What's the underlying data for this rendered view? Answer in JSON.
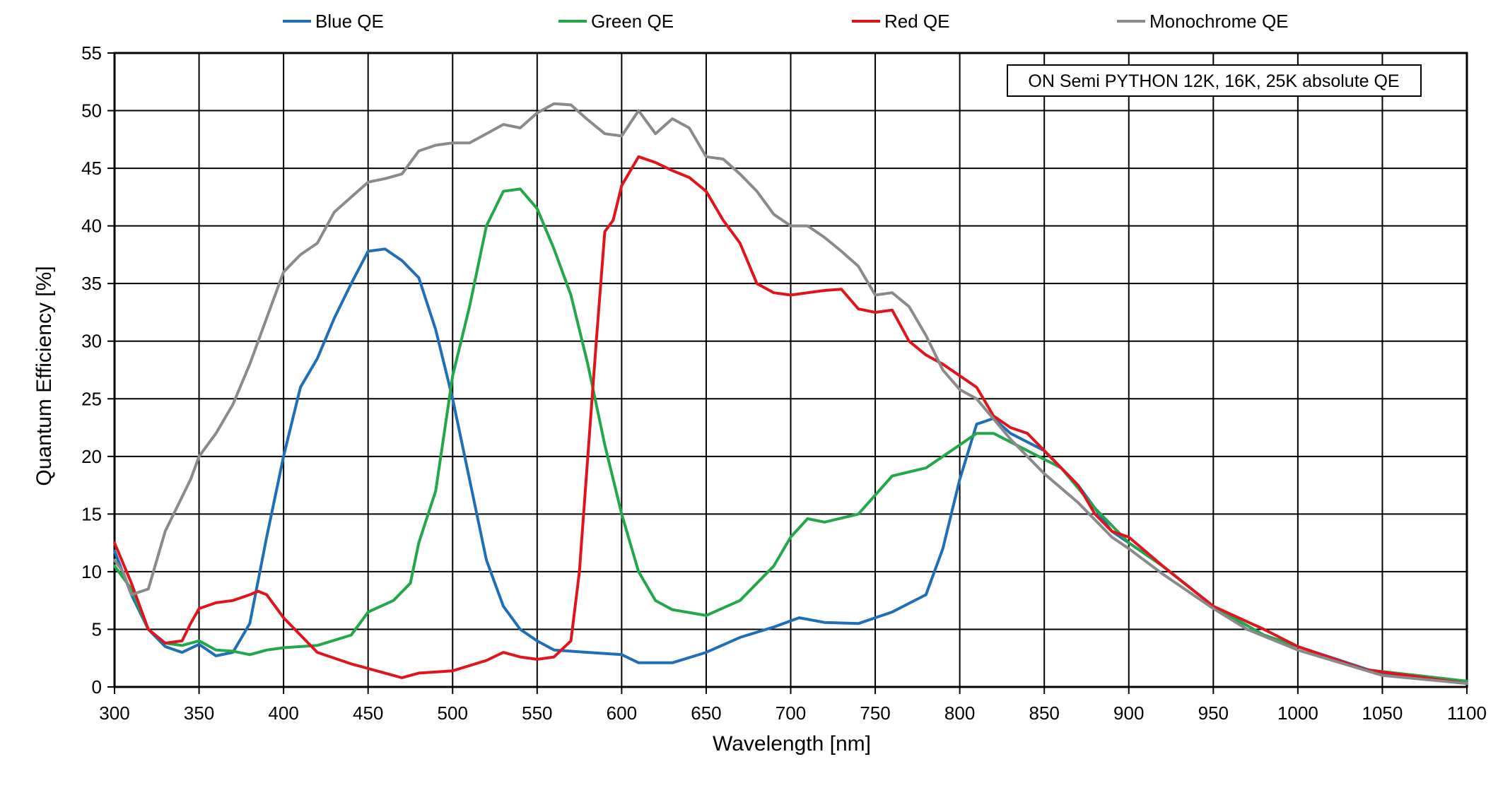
{
  "chart_data": {
    "type": "line",
    "title": "",
    "xlabel": "Wavelength [nm]",
    "ylabel": "Quantum Efficiency [%]",
    "xlim": [
      300,
      1100
    ],
    "ylim": [
      0,
      55
    ],
    "xticks": [
      300,
      350,
      400,
      450,
      500,
      550,
      600,
      650,
      700,
      750,
      800,
      850,
      900,
      950,
      1000,
      1050,
      1100
    ],
    "yticks": [
      0,
      5,
      10,
      15,
      20,
      25,
      30,
      35,
      40,
      45,
      50,
      55
    ],
    "grid": true,
    "legend_position": "top",
    "annotation": "ON Semi PYTHON 12K, 16K, 25K absolute QE",
    "series": [
      {
        "name": "Blue QE",
        "color": "#1f6fb8",
        "points": [
          [
            300,
            11.8
          ],
          [
            310,
            8
          ],
          [
            320,
            5
          ],
          [
            330,
            3.5
          ],
          [
            340,
            3
          ],
          [
            350,
            3.7
          ],
          [
            360,
            2.7
          ],
          [
            370,
            3
          ],
          [
            380,
            5.5
          ],
          [
            390,
            13
          ],
          [
            400,
            20
          ],
          [
            410,
            26
          ],
          [
            420,
            28.5
          ],
          [
            430,
            32
          ],
          [
            440,
            35
          ],
          [
            450,
            37.8
          ],
          [
            460,
            38
          ],
          [
            470,
            37
          ],
          [
            480,
            35.5
          ],
          [
            490,
            31
          ],
          [
            500,
            25
          ],
          [
            510,
            18
          ],
          [
            520,
            11
          ],
          [
            530,
            7
          ],
          [
            540,
            5
          ],
          [
            550,
            4
          ],
          [
            560,
            3.2
          ],
          [
            580,
            3
          ],
          [
            600,
            2.8
          ],
          [
            610,
            2.1
          ],
          [
            630,
            2.1
          ],
          [
            650,
            3
          ],
          [
            670,
            4.3
          ],
          [
            690,
            5.2
          ],
          [
            705,
            6
          ],
          [
            720,
            5.6
          ],
          [
            740,
            5.5
          ],
          [
            760,
            6.5
          ],
          [
            780,
            8
          ],
          [
            790,
            12
          ],
          [
            800,
            18
          ],
          [
            810,
            22.8
          ],
          [
            820,
            23.3
          ],
          [
            830,
            22
          ],
          [
            850,
            20.5
          ],
          [
            870,
            17.5
          ],
          [
            890,
            13.5
          ],
          [
            900,
            12.5
          ],
          [
            920,
            10.5
          ],
          [
            950,
            7
          ],
          [
            970,
            5
          ],
          [
            1000,
            3.5
          ],
          [
            1050,
            1.1
          ],
          [
            1100,
            0.3
          ]
        ]
      },
      {
        "name": "Green QE",
        "color": "#22a84a",
        "points": [
          [
            300,
            10.5
          ],
          [
            310,
            8.5
          ],
          [
            320,
            5
          ],
          [
            330,
            3.8
          ],
          [
            340,
            3.6
          ],
          [
            350,
            4
          ],
          [
            360,
            3.2
          ],
          [
            370,
            3.1
          ],
          [
            380,
            2.8
          ],
          [
            390,
            3.2
          ],
          [
            400,
            3.4
          ],
          [
            420,
            3.6
          ],
          [
            440,
            4.5
          ],
          [
            450,
            6.5
          ],
          [
            465,
            7.5
          ],
          [
            475,
            9
          ],
          [
            480,
            12.5
          ],
          [
            490,
            17
          ],
          [
            500,
            27
          ],
          [
            510,
            33
          ],
          [
            520,
            40
          ],
          [
            530,
            43
          ],
          [
            540,
            43.2
          ],
          [
            550,
            41.5
          ],
          [
            560,
            38
          ],
          [
            570,
            34
          ],
          [
            580,
            28
          ],
          [
            590,
            21
          ],
          [
            600,
            15
          ],
          [
            610,
            10
          ],
          [
            620,
            7.5
          ],
          [
            630,
            6.7
          ],
          [
            650,
            6.2
          ],
          [
            670,
            7.5
          ],
          [
            690,
            10.5
          ],
          [
            700,
            13
          ],
          [
            710,
            14.6
          ],
          [
            720,
            14.3
          ],
          [
            740,
            15
          ],
          [
            760,
            18.3
          ],
          [
            780,
            19
          ],
          [
            795,
            20.5
          ],
          [
            810,
            22
          ],
          [
            820,
            22
          ],
          [
            840,
            20.5
          ],
          [
            860,
            19
          ],
          [
            880,
            15.5
          ],
          [
            900,
            12.5
          ],
          [
            920,
            10.5
          ],
          [
            950,
            7
          ],
          [
            980,
            4.5
          ],
          [
            1000,
            3.5
          ],
          [
            1040,
            1.5
          ],
          [
            1100,
            0.5
          ]
        ]
      },
      {
        "name": "Red QE",
        "color": "#e0141c",
        "points": [
          [
            300,
            12.5
          ],
          [
            310,
            9
          ],
          [
            320,
            5
          ],
          [
            330,
            3.8
          ],
          [
            340,
            4
          ],
          [
            345,
            5.5
          ],
          [
            350,
            6.8
          ],
          [
            360,
            7.3
          ],
          [
            370,
            7.5
          ],
          [
            380,
            8
          ],
          [
            385,
            8.3
          ],
          [
            390,
            8
          ],
          [
            400,
            6
          ],
          [
            410,
            4.5
          ],
          [
            420,
            3
          ],
          [
            440,
            2
          ],
          [
            460,
            1.2
          ],
          [
            470,
            0.8
          ],
          [
            480,
            1.2
          ],
          [
            500,
            1.4
          ],
          [
            520,
            2.3
          ],
          [
            530,
            3
          ],
          [
            540,
            2.6
          ],
          [
            550,
            2.4
          ],
          [
            560,
            2.6
          ],
          [
            570,
            4
          ],
          [
            575,
            10
          ],
          [
            580,
            20
          ],
          [
            585,
            30
          ],
          [
            590,
            39.5
          ],
          [
            595,
            40.5
          ],
          [
            600,
            43.5
          ],
          [
            610,
            46
          ],
          [
            620,
            45.5
          ],
          [
            630,
            44.8
          ],
          [
            640,
            44.2
          ],
          [
            650,
            43
          ],
          [
            660,
            40.5
          ],
          [
            670,
            38.5
          ],
          [
            680,
            35
          ],
          [
            690,
            34.2
          ],
          [
            700,
            34
          ],
          [
            720,
            34.4
          ],
          [
            730,
            34.5
          ],
          [
            740,
            32.8
          ],
          [
            750,
            32.5
          ],
          [
            760,
            32.7
          ],
          [
            770,
            30
          ],
          [
            780,
            28.8
          ],
          [
            790,
            28
          ],
          [
            800,
            27
          ],
          [
            810,
            26
          ],
          [
            820,
            23.5
          ],
          [
            830,
            22.5
          ],
          [
            840,
            22
          ],
          [
            850,
            20.5
          ],
          [
            870,
            17.5
          ],
          [
            880,
            15
          ],
          [
            890,
            13.5
          ],
          [
            900,
            13
          ],
          [
            920,
            10.5
          ],
          [
            950,
            7
          ],
          [
            980,
            5
          ],
          [
            1000,
            3.5
          ],
          [
            1040,
            1.5
          ],
          [
            1100,
            0.3
          ]
        ]
      },
      {
        "name": "Monochrome QE",
        "color": "#8a8a8a",
        "points": [
          [
            300,
            11
          ],
          [
            305,
            10
          ],
          [
            310,
            8
          ],
          [
            320,
            8.5
          ],
          [
            330,
            13.5
          ],
          [
            340,
            16.5
          ],
          [
            345,
            18
          ],
          [
            350,
            20
          ],
          [
            360,
            22
          ],
          [
            370,
            24.5
          ],
          [
            380,
            28
          ],
          [
            390,
            32
          ],
          [
            400,
            36
          ],
          [
            410,
            37.5
          ],
          [
            420,
            38.5
          ],
          [
            430,
            41.2
          ],
          [
            440,
            42.5
          ],
          [
            450,
            43.8
          ],
          [
            460,
            44.1
          ],
          [
            470,
            44.5
          ],
          [
            480,
            46.5
          ],
          [
            490,
            47
          ],
          [
            500,
            47.2
          ],
          [
            510,
            47.2
          ],
          [
            520,
            48
          ],
          [
            530,
            48.8
          ],
          [
            540,
            48.5
          ],
          [
            550,
            49.8
          ],
          [
            560,
            50.6
          ],
          [
            570,
            50.5
          ],
          [
            580,
            49.2
          ],
          [
            590,
            48
          ],
          [
            600,
            47.8
          ],
          [
            610,
            50
          ],
          [
            620,
            48
          ],
          [
            630,
            49.3
          ],
          [
            640,
            48.5
          ],
          [
            650,
            46
          ],
          [
            660,
            45.8
          ],
          [
            670,
            44.5
          ],
          [
            680,
            43
          ],
          [
            690,
            41
          ],
          [
            700,
            40
          ],
          [
            710,
            40
          ],
          [
            720,
            39
          ],
          [
            730,
            37.8
          ],
          [
            740,
            36.5
          ],
          [
            750,
            34
          ],
          [
            760,
            34.2
          ],
          [
            770,
            33
          ],
          [
            780,
            30.5
          ],
          [
            790,
            27.5
          ],
          [
            800,
            25.8
          ],
          [
            810,
            25
          ],
          [
            830,
            21.5
          ],
          [
            850,
            18.5
          ],
          [
            870,
            16
          ],
          [
            890,
            13
          ],
          [
            900,
            12
          ],
          [
            920,
            9.8
          ],
          [
            950,
            6.8
          ],
          [
            970,
            5
          ],
          [
            1000,
            3.2
          ],
          [
            1050,
            1
          ],
          [
            1100,
            0.3
          ]
        ]
      }
    ]
  }
}
